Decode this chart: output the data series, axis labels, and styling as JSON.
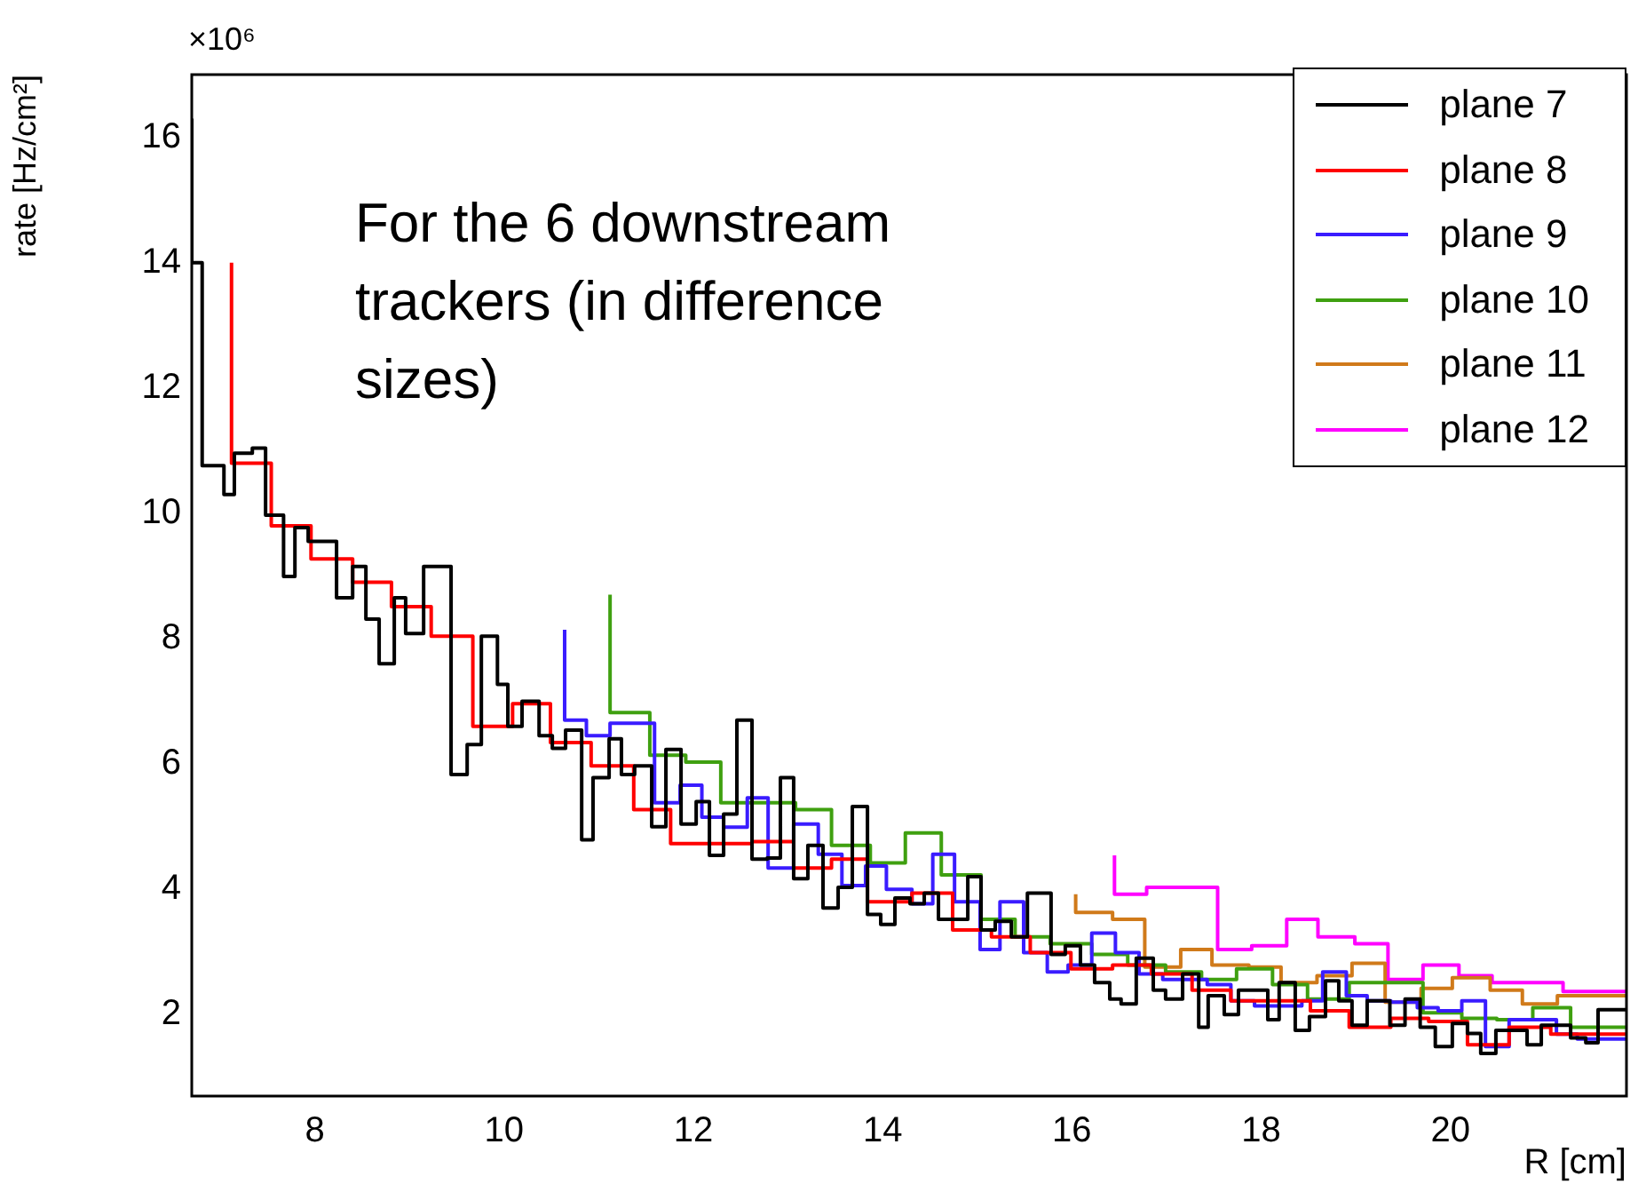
{
  "chart_data": {
    "type": "step",
    "xlabel": "R [cm]",
    "ylabel": "rate [Hz/cm²]",
    "xlim": [
      6.7,
      21.86
    ],
    "ylim": [
      0.7,
      17
    ],
    "xticks": [
      8,
      10,
      12,
      14,
      16,
      18,
      20
    ],
    "yticks": [
      2,
      4,
      6,
      8,
      10,
      12,
      14,
      16
    ],
    "grid": false,
    "legend": "top right",
    "annotations": [
      "×10⁶",
      "For the 6 downstream trackers (in difference sizes)"
    ],
    "series": [
      {
        "name": "plane 7",
        "color": "#000000",
        "x": [
          6.7,
          6.81,
          7.04,
          7.15,
          7.34,
          7.48,
          7.67,
          7.79,
          7.93,
          8.23,
          8.4,
          8.54,
          8.68,
          8.84,
          8.96,
          9.15,
          9.44,
          9.61,
          9.76,
          9.93,
          10.04,
          10.19,
          10.37,
          10.51,
          10.65,
          10.82,
          10.94,
          11.11,
          11.24,
          11.38,
          11.56,
          11.71,
          11.87,
          12.03,
          12.17,
          12.32,
          12.46,
          12.62,
          12.78,
          12.92,
          13.06,
          13.21,
          13.37,
          13.53,
          13.68,
          13.84,
          13.98,
          14.13,
          14.29,
          14.44,
          14.59,
          14.9,
          15.04,
          15.19,
          15.36,
          15.53,
          15.78,
          15.93,
          16.09,
          16.24,
          16.4,
          16.52,
          16.68,
          16.86,
          16.99,
          17.17,
          17.34,
          17.44,
          17.61,
          17.76,
          17.92,
          18.07,
          18.19,
          18.36,
          18.51,
          18.68,
          18.82,
          18.96,
          19.12,
          19.36,
          19.52,
          19.68,
          19.84,
          20.02,
          20.18,
          20.32,
          20.48,
          20.65,
          20.81,
          20.96,
          21.12,
          21.27,
          21.43,
          21.56,
          21.68,
          21.86
        ],
        "values": [
          16.3,
          14.0,
          10.76,
          10.3,
          10.96,
          11.04,
          9.97,
          8.99,
          9.77,
          9.55,
          8.65,
          9.15,
          8.31,
          7.6,
          8.65,
          8.08,
          9.15,
          5.83,
          6.31,
          8.04,
          7.27,
          6.6,
          7.0,
          6.45,
          6.25,
          6.54,
          4.79,
          5.78,
          6.4,
          5.83,
          5.97,
          5.0,
          6.23,
          5.04,
          5.4,
          4.54,
          5.2,
          6.7,
          4.48,
          4.5,
          5.78,
          4.17,
          4.7,
          3.7,
          4.03,
          5.32,
          3.6,
          3.44,
          3.86,
          3.77,
          3.94,
          3.52,
          4.2,
          3.35,
          3.49,
          3.24,
          3.94,
          2.96,
          3.1,
          2.79,
          2.51,
          2.25,
          2.17,
          2.9,
          2.39,
          2.25,
          2.65,
          1.8,
          2.3,
          2.0,
          2.39,
          2.39,
          1.92,
          2.51,
          1.75,
          1.97,
          2.54,
          2.22,
          1.83,
          2.22,
          1.83,
          2.25,
          1.8,
          1.49,
          1.86,
          1.7,
          1.38,
          1.75,
          1.75,
          1.52,
          1.83,
          1.83,
          1.63,
          1.55,
          2.08,
          2.08
        ]
      },
      {
        "name": "plane 8",
        "color": "#ff0000",
        "x": [
          7.12,
          7.54,
          7.96,
          8.4,
          8.81,
          9.23,
          9.67,
          10.09,
          10.49,
          10.92,
          11.37,
          11.76,
          12.18,
          12.62,
          13.06,
          13.46,
          13.84,
          14.31,
          14.74,
          15.15,
          15.56,
          15.99,
          16.43,
          16.84,
          17.27,
          17.68,
          18.12,
          18.52,
          18.93,
          19.37,
          19.77,
          20.18,
          20.62,
          21.06,
          21.46,
          21.86
        ],
        "values": [
          14.0,
          10.8,
          9.8,
          9.27,
          8.9,
          8.51,
          8.04,
          6.6,
          6.96,
          6.34,
          5.97,
          5.27,
          4.73,
          4.73,
          4.76,
          4.34,
          4.48,
          3.8,
          3.94,
          3.35,
          3.24,
          2.99,
          2.73,
          2.79,
          2.65,
          2.39,
          2.22,
          2.22,
          2.06,
          1.8,
          1.94,
          1.89,
          1.52,
          1.8,
          1.69,
          1.69
        ]
      },
      {
        "name": "plane 9",
        "color": "#3a1cff",
        "x": [
          10.64,
          10.87,
          11.12,
          11.59,
          11.86,
          12.09,
          12.32,
          12.57,
          12.79,
          13.06,
          13.32,
          13.57,
          13.82,
          14.04,
          14.31,
          14.53,
          14.76,
          15.03,
          15.24,
          15.49,
          15.74,
          15.96,
          16.21,
          16.46,
          16.71,
          16.96,
          17.18,
          17.43,
          17.68,
          17.93,
          18.18,
          18.43,
          18.65,
          18.9,
          19.12,
          19.37,
          19.65,
          19.87,
          20.12,
          20.37,
          20.62,
          20.87,
          21.12,
          21.34,
          21.59,
          21.86
        ],
        "values": [
          8.14,
          6.7,
          6.45,
          6.65,
          5.38,
          5.66,
          5.15,
          4.99,
          5.46,
          4.34,
          5.04,
          4.56,
          4.06,
          4.37,
          4.0,
          3.77,
          4.56,
          3.8,
          3.04,
          3.8,
          2.99,
          2.68,
          2.79,
          3.3,
          2.99,
          2.65,
          2.56,
          2.56,
          2.48,
          2.22,
          2.14,
          2.14,
          2.22,
          2.68,
          2.3,
          2.22,
          2.2,
          2.11,
          2.06,
          2.22,
          1.49,
          1.92,
          1.92,
          1.69,
          1.61,
          1.61
        ]
      },
      {
        "name": "plane 10",
        "color": "#3fa010",
        "x": [
          11.12,
          11.54,
          11.92,
          12.29,
          12.71,
          13.08,
          13.46,
          13.87,
          14.24,
          14.62,
          15.04,
          15.4,
          15.77,
          16.21,
          16.59,
          16.99,
          17.37,
          17.74,
          18.12,
          18.49,
          18.93,
          19.31,
          19.71,
          20.12,
          20.49,
          20.87,
          21.27,
          21.65,
          21.86
        ],
        "values": [
          8.7,
          6.82,
          6.14,
          6.03,
          5.38,
          5.38,
          5.27,
          4.7,
          4.42,
          4.9,
          4.23,
          3.52,
          3.24,
          3.13,
          2.96,
          2.79,
          2.68,
          2.56,
          2.73,
          2.48,
          2.25,
          2.51,
          2.51,
          2.03,
          1.94,
          1.92,
          2.11,
          1.8,
          1.8
        ]
      },
      {
        "name": "plane 11",
        "color": "#d07a1a",
        "x": [
          16.04,
          16.43,
          16.77,
          17.15,
          17.48,
          17.87,
          18.21,
          18.59,
          18.96,
          19.31,
          19.69,
          20.02,
          20.42,
          20.76,
          21.13,
          21.48,
          21.86
        ],
        "values": [
          3.92,
          3.63,
          3.52,
          2.76,
          3.04,
          2.79,
          2.76,
          2.51,
          2.62,
          2.82,
          2.2,
          2.42,
          2.59,
          2.39,
          2.17,
          2.3,
          2.3
        ]
      },
      {
        "name": "plane 12",
        "color": "#ff00ff",
        "x": [
          16.45,
          16.79,
          17.17,
          17.54,
          17.9,
          18.27,
          18.6,
          18.99,
          19.34,
          19.71,
          20.09,
          20.44,
          20.82,
          21.19,
          21.54,
          21.86
        ],
        "values": [
          4.54,
          3.92,
          4.03,
          4.03,
          3.04,
          3.1,
          3.52,
          3.24,
          3.13,
          2.56,
          2.79,
          2.62,
          2.51,
          2.51,
          2.37,
          2.37
        ]
      }
    ]
  }
}
